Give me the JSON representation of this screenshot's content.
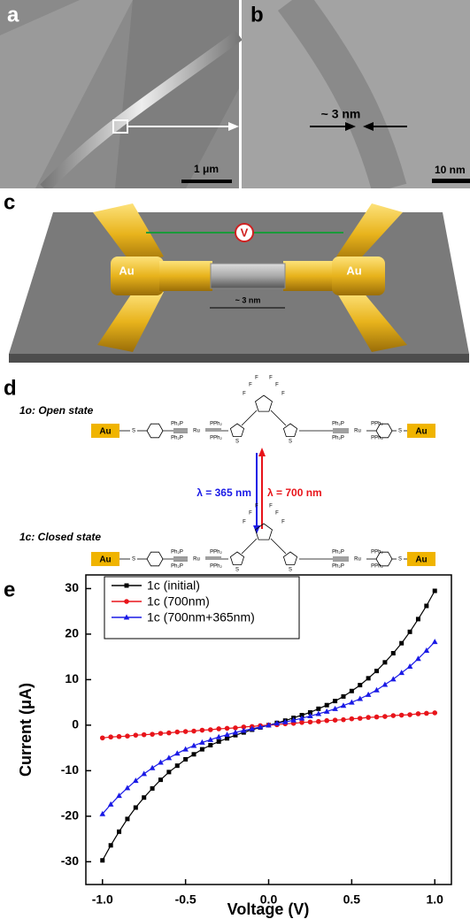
{
  "panels": {
    "a": {
      "label": "a",
      "scale_bar": "1 μm"
    },
    "b": {
      "label": "b",
      "gap": "~ 3 nm",
      "scale_bar": "10 nm"
    },
    "c": {
      "label": "c",
      "electrode_left": "Au",
      "electrode_right": "Au",
      "meter": "V",
      "gap": "~ 3 nm"
    },
    "d": {
      "label": "d",
      "open": {
        "title": "1o: Open state",
        "au_left": "Au",
        "au_right": "Au",
        "atoms": [
          "S",
          "Ph₂P",
          "PPh₂",
          "Ru",
          "Ph₂P",
          "PPh₂",
          "S",
          "S",
          "Ph₂P",
          "PPh₂",
          "Ru",
          "Ph₂P",
          "PPh₂",
          "S",
          "F",
          "F",
          "F",
          "F",
          "F",
          "F"
        ]
      },
      "closed": {
        "title": "1c: Closed state",
        "au_left": "Au",
        "au_right": "Au",
        "atoms": [
          "S",
          "Ph₂P",
          "PPh₂",
          "Ru",
          "Ph₂P",
          "PPh₂",
          "S",
          "S",
          "Ph₂P",
          "PPh₂",
          "Ru",
          "Ph₂P",
          "PPh₂",
          "S",
          "F",
          "F",
          "F",
          "F",
          "F",
          "F"
        ]
      },
      "forward": "λ = 365 nm",
      "backward": "λ = 700 nm"
    },
    "e": {
      "label": "e"
    }
  },
  "chart_data": {
    "type": "line",
    "x_label": "Voltage (V)",
    "y_label": "Current (μA)",
    "x": [
      -1,
      -0.95,
      -0.9,
      -0.85,
      -0.8,
      -0.75,
      -0.7,
      -0.65,
      -0.6,
      -0.55,
      -0.5,
      -0.45,
      -0.4,
      -0.35,
      -0.3,
      -0.25,
      -0.2,
      -0.15,
      -0.1,
      -0.05,
      0,
      0.05,
      0.1,
      0.15,
      0.2,
      0.25,
      0.3,
      0.35,
      0.4,
      0.45,
      0.5,
      0.55,
      0.6,
      0.65,
      0.7,
      0.75,
      0.8,
      0.85,
      0.9,
      0.95,
      1
    ],
    "series": [
      {
        "name": "1c (initial)",
        "color": "#000000",
        "marker": "square",
        "values": [
          -29.7,
          -26.4,
          -23.4,
          -20.6,
          -18.1,
          -15.9,
          -13.9,
          -12.0,
          -10.3,
          -8.9,
          -7.5,
          -6.4,
          -5.3,
          -4.4,
          -3.6,
          -2.9,
          -2.2,
          -1.6,
          -1.0,
          -0.5,
          0,
          0.5,
          1.0,
          1.6,
          2.2,
          2.8,
          3.6,
          4.4,
          5.3,
          6.3,
          7.5,
          8.8,
          10.3,
          11.9,
          13.8,
          15.8,
          18.0,
          20.5,
          23.3,
          26.2,
          29.5
        ]
      },
      {
        "name": "1c (700nm)",
        "color": "#e8141a",
        "marker": "circle",
        "values": [
          -2.8,
          -2.6,
          -2.5,
          -2.4,
          -2.2,
          -2.1,
          -2.0,
          -1.8,
          -1.7,
          -1.5,
          -1.4,
          -1.3,
          -1.1,
          -1.0,
          -0.8,
          -0.7,
          -0.6,
          -0.4,
          -0.3,
          -0.1,
          0,
          0.1,
          0.3,
          0.4,
          0.6,
          0.7,
          0.8,
          1.0,
          1.1,
          1.2,
          1.4,
          1.5,
          1.7,
          1.8,
          1.9,
          2.1,
          2.2,
          2.3,
          2.5,
          2.6,
          2.7
        ]
      },
      {
        "name": "1c (700nm+365nm)",
        "color": "#1a1ae6",
        "marker": "triangle",
        "values": [
          -19.5,
          -17.4,
          -15.5,
          -13.8,
          -12.2,
          -10.7,
          -9.4,
          -8.2,
          -7.2,
          -6.2,
          -5.3,
          -4.5,
          -3.8,
          -3.2,
          -2.6,
          -2.1,
          -1.6,
          -1.2,
          -0.8,
          -0.4,
          0,
          0.4,
          0.7,
          1.1,
          1.5,
          2.0,
          2.5,
          3.0,
          3.6,
          4.3,
          5.0,
          5.8,
          6.7,
          7.7,
          8.9,
          10.1,
          11.5,
          12.9,
          14.6,
          16.4,
          18.3
        ]
      }
    ],
    "xlim": [
      -1.1,
      1.1
    ],
    "ylim": [
      -35,
      33
    ],
    "xticks": [
      {
        "value": -1,
        "label": "-1.0"
      },
      -0.5,
      {
        "value": 0,
        "label": "0.0"
      },
      0.5,
      {
        "value": 1,
        "label": "1.0"
      }
    ],
    "yticks": [
      -30,
      -20,
      -10,
      0,
      10,
      20,
      30
    ]
  }
}
